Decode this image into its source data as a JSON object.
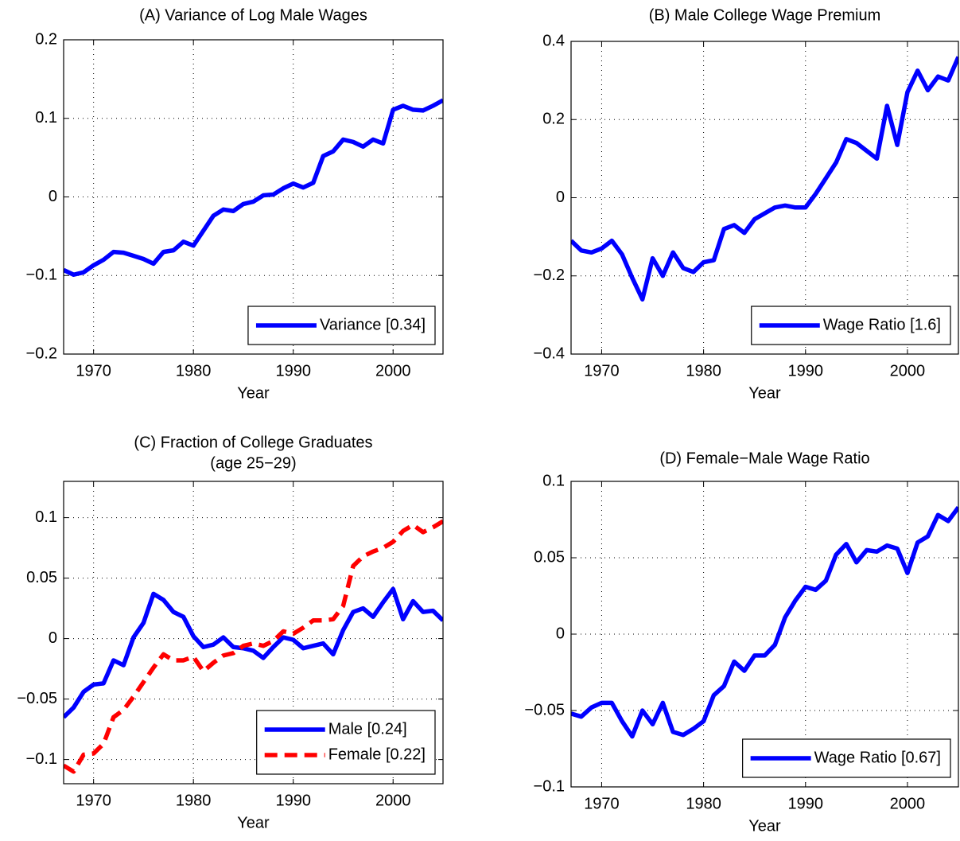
{
  "chart_data": [
    {
      "type": "line",
      "title": "(A) Variance of Log Male Wages",
      "xlabel": "Year",
      "x": [
        1967,
        1968,
        1969,
        1970,
        1971,
        1972,
        1973,
        1974,
        1975,
        1976,
        1977,
        1978,
        1979,
        1980,
        1981,
        1982,
        1983,
        1984,
        1985,
        1986,
        1987,
        1988,
        1989,
        1990,
        1991,
        1992,
        1993,
        1994,
        1995,
        1996,
        1997,
        1998,
        1999,
        2000,
        2001,
        2002,
        2003,
        2004,
        2005
      ],
      "xlim": [
        1967,
        2005
      ],
      "xticks": [
        1970,
        1980,
        1990,
        2000
      ],
      "ylim": [
        -0.2,
        0.2
      ],
      "yticks": [
        {
          "value": -0.2,
          "label": "−0.2"
        },
        {
          "value": -0.1,
          "label": "−0.1"
        },
        0,
        0.1,
        0.2
      ],
      "grid": true,
      "legend": "lower right",
      "series": [
        {
          "name": "Variance  [0.34]",
          "color": "#0000ff",
          "dash": "solid",
          "values": [
            -0.093,
            -0.099,
            -0.096,
            -0.087,
            -0.08,
            -0.07,
            -0.071,
            -0.075,
            -0.079,
            -0.085,
            -0.07,
            -0.068,
            -0.057,
            -0.062,
            -0.043,
            -0.024,
            -0.016,
            -0.018,
            -0.009,
            -0.006,
            0.002,
            0.003,
            0.011,
            0.017,
            0.012,
            0.018,
            0.052,
            0.058,
            0.073,
            0.07,
            0.064,
            0.073,
            0.068,
            0.111,
            0.116,
            0.111,
            0.11,
            0.116,
            0.123
          ]
        }
      ]
    },
    {
      "type": "line",
      "title": "(B) Male College Wage Premium",
      "xlabel": "Year",
      "x": [
        1967,
        1968,
        1969,
        1970,
        1971,
        1972,
        1973,
        1974,
        1975,
        1976,
        1977,
        1978,
        1979,
        1980,
        1981,
        1982,
        1983,
        1984,
        1985,
        1986,
        1987,
        1988,
        1989,
        1990,
        1991,
        1992,
        1993,
        1994,
        1995,
        1996,
        1997,
        1998,
        1999,
        2000,
        2001,
        2002,
        2003,
        2004,
        2005
      ],
      "xlim": [
        1967,
        2005
      ],
      "xticks": [
        1970,
        1980,
        1990,
        2000
      ],
      "ylim": [
        -0.4,
        0.4
      ],
      "yticks": [
        {
          "value": -0.4,
          "label": "−0.4"
        },
        {
          "value": -0.2,
          "label": "−0.2"
        },
        0,
        0.2,
        0.4
      ],
      "grid": true,
      "legend": "lower right",
      "series": [
        {
          "name": "Wage Ratio  [1.6]",
          "color": "#0000ff",
          "dash": "solid",
          "values": [
            -0.11,
            -0.135,
            -0.14,
            -0.13,
            -0.11,
            -0.145,
            -0.205,
            -0.26,
            -0.155,
            -0.2,
            -0.14,
            -0.18,
            -0.19,
            -0.165,
            -0.16,
            -0.08,
            -0.07,
            -0.09,
            -0.055,
            -0.04,
            -0.025,
            -0.02,
            -0.025,
            -0.025,
            0.01,
            0.05,
            0.09,
            0.15,
            0.14,
            0.12,
            0.1,
            0.235,
            0.135,
            0.27,
            0.325,
            0.275,
            0.31,
            0.3,
            0.36
          ]
        }
      ]
    },
    {
      "type": "line",
      "title": "(C) Fraction of College Graduates",
      "subtitle": "(age 25−29)",
      "xlabel": "Year",
      "x": [
        1967,
        1968,
        1969,
        1970,
        1971,
        1972,
        1973,
        1974,
        1975,
        1976,
        1977,
        1978,
        1979,
        1980,
        1981,
        1982,
        1983,
        1984,
        1985,
        1986,
        1987,
        1988,
        1989,
        1990,
        1991,
        1992,
        1993,
        1994,
        1995,
        1996,
        1997,
        1998,
        1999,
        2000,
        2001,
        2002,
        2003,
        2004,
        2005
      ],
      "xlim": [
        1967,
        2005
      ],
      "xticks": [
        1970,
        1980,
        1990,
        2000
      ],
      "ylim": [
        -0.12,
        0.13
      ],
      "yticks": [
        {
          "value": -0.1,
          "label": "−0.1"
        },
        {
          "value": -0.05,
          "label": "−0.05"
        },
        0,
        0.05,
        0.1
      ],
      "grid": true,
      "legend": "lower right",
      "series": [
        {
          "name": "Male [0.24]",
          "color": "#0000ff",
          "dash": "solid",
          "values": [
            -0.065,
            -0.057,
            -0.044,
            -0.038,
            -0.037,
            -0.018,
            -0.022,
            0.001,
            0.013,
            0.037,
            0.032,
            0.022,
            0.018,
            0.002,
            -0.007,
            -0.005,
            0.001,
            -0.007,
            -0.008,
            -0.01,
            -0.016,
            -0.007,
            0.001,
            -0.001,
            -0.008,
            -0.006,
            -0.004,
            -0.013,
            0.007,
            0.022,
            0.025,
            0.018,
            0.03,
            0.041,
            0.016,
            0.031,
            0.022,
            0.023,
            0.015
          ]
        },
        {
          "name": "Female [0.22]",
          "color": "#ff0000",
          "dash": "dashed",
          "values": [
            -0.105,
            -0.11,
            -0.096,
            -0.095,
            -0.087,
            -0.065,
            -0.059,
            -0.048,
            -0.036,
            -0.024,
            -0.013,
            -0.018,
            -0.018,
            -0.015,
            -0.027,
            -0.02,
            -0.014,
            -0.012,
            -0.006,
            -0.004,
            -0.006,
            -0.002,
            0.006,
            0.004,
            0.009,
            0.015,
            0.015,
            0.016,
            0.027,
            0.06,
            0.068,
            0.072,
            0.075,
            0.08,
            0.089,
            0.094,
            0.088,
            0.092,
            0.097
          ]
        }
      ]
    },
    {
      "type": "line",
      "title": "(D) Female−Male Wage Ratio",
      "xlabel": "Year",
      "x": [
        1967,
        1968,
        1969,
        1970,
        1971,
        1972,
        1973,
        1974,
        1975,
        1976,
        1977,
        1978,
        1979,
        1980,
        1981,
        1982,
        1983,
        1984,
        1985,
        1986,
        1987,
        1988,
        1989,
        1990,
        1991,
        1992,
        1993,
        1994,
        1995,
        1996,
        1997,
        1998,
        1999,
        2000,
        2001,
        2002,
        2003,
        2004,
        2005
      ],
      "xlim": [
        1967,
        2005
      ],
      "xticks": [
        1970,
        1980,
        1990,
        2000
      ],
      "ylim": [
        -0.1,
        0.1
      ],
      "yticks": [
        {
          "value": -0.1,
          "label": "−0.1"
        },
        {
          "value": -0.05,
          "label": "−0.05"
        },
        0,
        0.05,
        0.1
      ],
      "grid": true,
      "legend": "lower right",
      "series": [
        {
          "name": "Wage Ratio  [0.67]",
          "color": "#0000ff",
          "dash": "solid",
          "values": [
            -0.052,
            -0.054,
            -0.048,
            -0.045,
            -0.045,
            -0.057,
            -0.067,
            -0.05,
            -0.059,
            -0.045,
            -0.064,
            -0.066,
            -0.062,
            -0.057,
            -0.04,
            -0.034,
            -0.018,
            -0.024,
            -0.014,
            -0.014,
            -0.007,
            0.011,
            0.022,
            0.031,
            0.029,
            0.035,
            0.052,
            0.059,
            0.047,
            0.055,
            0.054,
            0.058,
            0.056,
            0.04,
            0.06,
            0.064,
            0.078,
            0.074,
            0.083
          ]
        }
      ]
    }
  ]
}
